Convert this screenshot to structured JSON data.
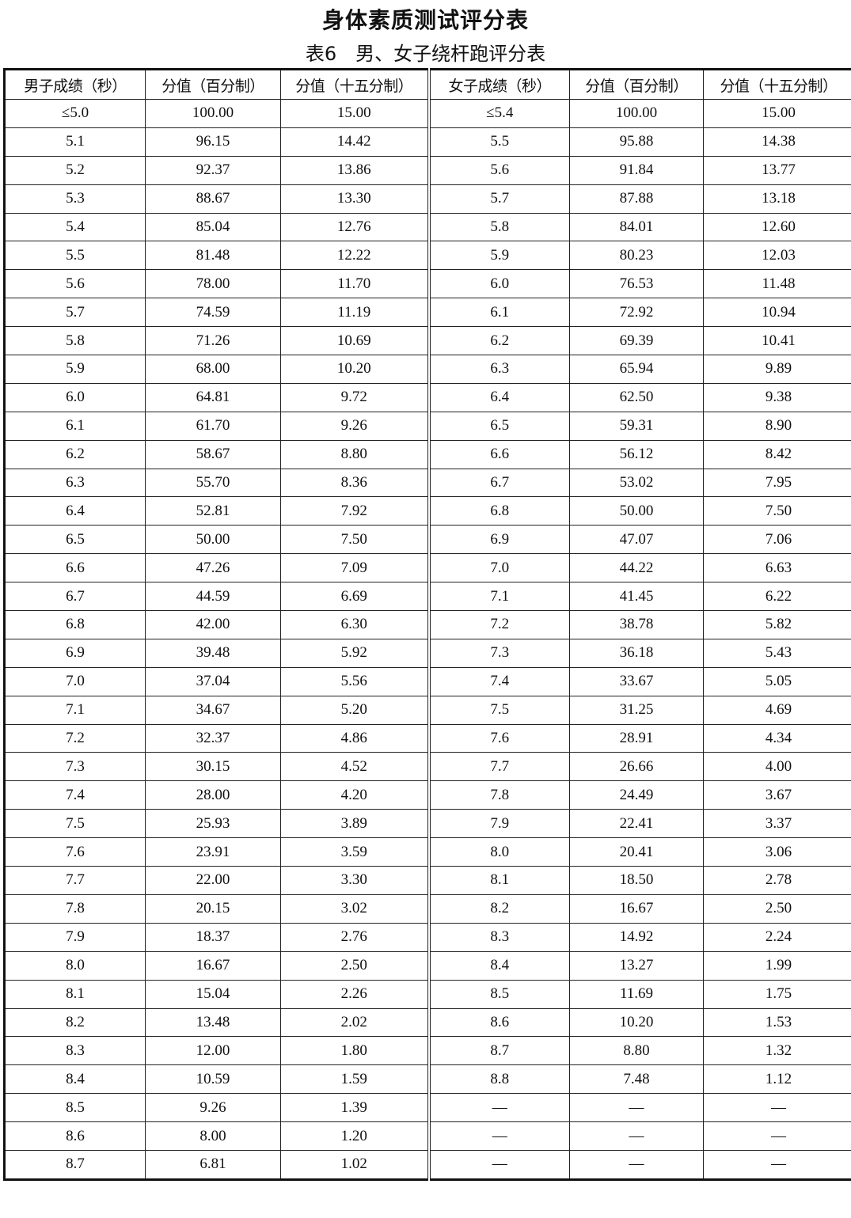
{
  "title": "身体素质测试评分表",
  "subtitle": "表6　男、女子绕杆跑评分表",
  "headers": [
    "男子成绩（秒）",
    "分值（百分制）",
    "分值（十五分制）",
    "女子成绩（秒）",
    "分值（百分制）",
    "分值（十五分制）"
  ],
  "rows": [
    [
      "≤5.0",
      "100.00",
      "15.00",
      "≤5.4",
      "100.00",
      "15.00"
    ],
    [
      "5.1",
      "96.15",
      "14.42",
      "5.5",
      "95.88",
      "14.38"
    ],
    [
      "5.2",
      "92.37",
      "13.86",
      "5.6",
      "91.84",
      "13.77"
    ],
    [
      "5.3",
      "88.67",
      "13.30",
      "5.7",
      "87.88",
      "13.18"
    ],
    [
      "5.4",
      "85.04",
      "12.76",
      "5.8",
      "84.01",
      "12.60"
    ],
    [
      "5.5",
      "81.48",
      "12.22",
      "5.9",
      "80.23",
      "12.03"
    ],
    [
      "5.6",
      "78.00",
      "11.70",
      "6.0",
      "76.53",
      "11.48"
    ],
    [
      "5.7",
      "74.59",
      "11.19",
      "6.1",
      "72.92",
      "10.94"
    ],
    [
      "5.8",
      "71.26",
      "10.69",
      "6.2",
      "69.39",
      "10.41"
    ],
    [
      "5.9",
      "68.00",
      "10.20",
      "6.3",
      "65.94",
      "9.89"
    ],
    [
      "6.0",
      "64.81",
      "9.72",
      "6.4",
      "62.50",
      "9.38"
    ],
    [
      "6.1",
      "61.70",
      "9.26",
      "6.5",
      "59.31",
      "8.90"
    ],
    [
      "6.2",
      "58.67",
      "8.80",
      "6.6",
      "56.12",
      "8.42"
    ],
    [
      "6.3",
      "55.70",
      "8.36",
      "6.7",
      "53.02",
      "7.95"
    ],
    [
      "6.4",
      "52.81",
      "7.92",
      "6.8",
      "50.00",
      "7.50"
    ],
    [
      "6.5",
      "50.00",
      "7.50",
      "6.9",
      "47.07",
      "7.06"
    ],
    [
      "6.6",
      "47.26",
      "7.09",
      "7.0",
      "44.22",
      "6.63"
    ],
    [
      "6.7",
      "44.59",
      "6.69",
      "7.1",
      "41.45",
      "6.22"
    ],
    [
      "6.8",
      "42.00",
      "6.30",
      "7.2",
      "38.78",
      "5.82"
    ],
    [
      "6.9",
      "39.48",
      "5.92",
      "7.3",
      "36.18",
      "5.43"
    ],
    [
      "7.0",
      "37.04",
      "5.56",
      "7.4",
      "33.67",
      "5.05"
    ],
    [
      "7.1",
      "34.67",
      "5.20",
      "7.5",
      "31.25",
      "4.69"
    ],
    [
      "7.2",
      "32.37",
      "4.86",
      "7.6",
      "28.91",
      "4.34"
    ],
    [
      "7.3",
      "30.15",
      "4.52",
      "7.7",
      "26.66",
      "4.00"
    ],
    [
      "7.4",
      "28.00",
      "4.20",
      "7.8",
      "24.49",
      "3.67"
    ],
    [
      "7.5",
      "25.93",
      "3.89",
      "7.9",
      "22.41",
      "3.37"
    ],
    [
      "7.6",
      "23.91",
      "3.59",
      "8.0",
      "20.41",
      "3.06"
    ],
    [
      "7.7",
      "22.00",
      "3.30",
      "8.1",
      "18.50",
      "2.78"
    ],
    [
      "7.8",
      "20.15",
      "3.02",
      "8.2",
      "16.67",
      "2.50"
    ],
    [
      "7.9",
      "18.37",
      "2.76",
      "8.3",
      "14.92",
      "2.24"
    ],
    [
      "8.0",
      "16.67",
      "2.50",
      "8.4",
      "13.27",
      "1.99"
    ],
    [
      "8.1",
      "15.04",
      "2.26",
      "8.5",
      "11.69",
      "1.75"
    ],
    [
      "8.2",
      "13.48",
      "2.02",
      "8.6",
      "10.20",
      "1.53"
    ],
    [
      "8.3",
      "12.00",
      "1.80",
      "8.7",
      "8.80",
      "1.32"
    ],
    [
      "8.4",
      "10.59",
      "1.59",
      "8.8",
      "7.48",
      "1.12"
    ],
    [
      "8.5",
      "9.26",
      "1.39",
      "—",
      "—",
      "—"
    ],
    [
      "8.6",
      "8.00",
      "1.20",
      "—",
      "—",
      "—"
    ],
    [
      "8.7",
      "6.81",
      "1.02",
      "—",
      "—",
      "—"
    ]
  ]
}
